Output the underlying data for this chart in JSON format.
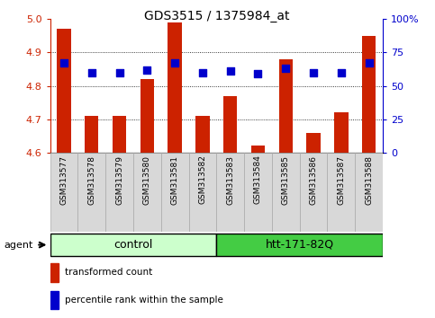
{
  "title": "GDS3515 / 1375984_at",
  "samples": [
    "GSM313577",
    "GSM313578",
    "GSM313579",
    "GSM313580",
    "GSM313581",
    "GSM313582",
    "GSM313583",
    "GSM313584",
    "GSM313585",
    "GSM313586",
    "GSM313587",
    "GSM313588"
  ],
  "transformed_count": [
    4.97,
    4.71,
    4.71,
    4.82,
    4.99,
    4.71,
    4.77,
    4.62,
    4.88,
    4.66,
    4.72,
    4.95
  ],
  "percentile_rank": [
    67,
    60,
    60,
    62,
    67,
    60,
    61,
    59,
    63,
    60,
    60,
    67
  ],
  "ylim_left": [
    4.6,
    5.0
  ],
  "yticks_left": [
    4.6,
    4.7,
    4.8,
    4.9,
    5.0
  ],
  "ylim_right": [
    0,
    100
  ],
  "yticks_right": [
    0,
    25,
    50,
    75,
    100
  ],
  "yticklabels_right": [
    "0",
    "25",
    "50",
    "75",
    "100%"
  ],
  "bar_color": "#cc2200",
  "dot_color": "#0000cc",
  "bar_width": 0.5,
  "dot_size": 30,
  "ctrl_color": "#ccffcc",
  "htt_color": "#44cc44",
  "left_tick_color": "#cc2200",
  "right_tick_color": "#0000cc",
  "background_color": "#ffffff",
  "gray_col": "#d8d8d8",
  "gray_border": "#aaaaaa"
}
